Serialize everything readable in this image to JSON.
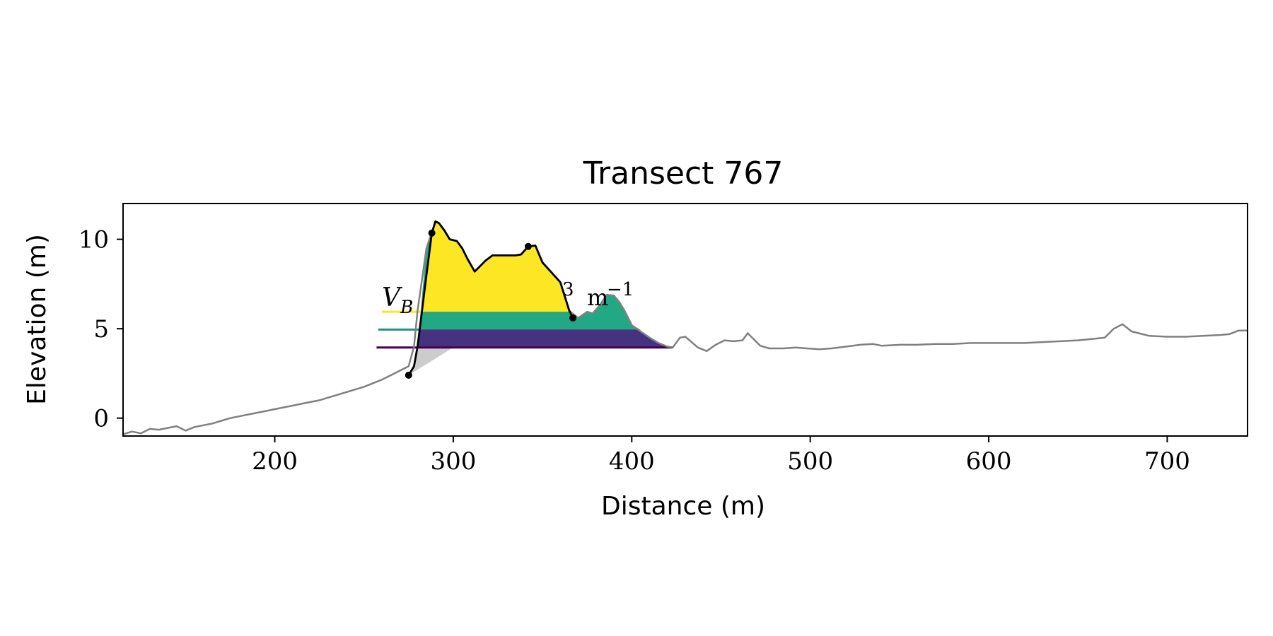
{
  "chart_data": {
    "type": "area",
    "title": "Transect 767",
    "xlabel": "Distance (m)",
    "ylabel": "Elevation (m)",
    "xlim": [
      115,
      745
    ],
    "ylim": [
      -1,
      12
    ],
    "xticks": [
      200,
      300,
      400,
      500,
      600,
      700
    ],
    "yticks": [
      0,
      5,
      10
    ],
    "grid": false,
    "annotation": {
      "base": "V",
      "subscript": "B",
      "unit_sup": "3",
      "unit_mid": "m",
      "unit_sup2": "−1"
    },
    "colors": {
      "profile": "#808080",
      "dune_outline": "#000000",
      "yellow": "#fde725",
      "teal": "#21918c",
      "green": "#22a884",
      "indigo": "#46327e",
      "purple": "#440154",
      "gray_fill": "#cccccc"
    },
    "profile": {
      "x": [
        115,
        120,
        125,
        130,
        135,
        140,
        145,
        150,
        155,
        160,
        165,
        170,
        175,
        180,
        185,
        190,
        195,
        200,
        205,
        210,
        215,
        220,
        225,
        230,
        235,
        240,
        245,
        250,
        255,
        260,
        265,
        270,
        275,
        278,
        280,
        285,
        288,
        290,
        292,
        295,
        298,
        302,
        305,
        308,
        312,
        315,
        318,
        322,
        326,
        330,
        335,
        338,
        342,
        346,
        350,
        355,
        360,
        365,
        370,
        375,
        378,
        382,
        386,
        390,
        393,
        396,
        400,
        405,
        410,
        415,
        420,
        423,
        427,
        430,
        433,
        437,
        442,
        447,
        452,
        457,
        462,
        465,
        468,
        472,
        477,
        485,
        492,
        498,
        505,
        512,
        520,
        528,
        535,
        540,
        550,
        560,
        570,
        580,
        590,
        600,
        610,
        620,
        630,
        640,
        650,
        660,
        665,
        670,
        675,
        680,
        690,
        700,
        710,
        720,
        730,
        735,
        740,
        745
      ],
      "y": [
        -0.9,
        -0.75,
        -0.85,
        -0.6,
        -0.65,
        -0.55,
        -0.45,
        -0.7,
        -0.5,
        -0.4,
        -0.3,
        -0.15,
        0.0,
        0.1,
        0.2,
        0.3,
        0.4,
        0.5,
        0.6,
        0.7,
        0.8,
        0.9,
        1.0,
        1.15,
        1.3,
        1.45,
        1.6,
        1.75,
        1.95,
        2.15,
        2.4,
        2.65,
        2.9,
        4.0,
        6.0,
        9.5,
        10.4,
        11.0,
        10.9,
        10.5,
        10.0,
        9.9,
        9.5,
        8.9,
        8.2,
        8.5,
        8.8,
        9.1,
        9.1,
        9.1,
        9.1,
        9.15,
        9.6,
        9.65,
        8.7,
        8.15,
        7.6,
        6.0,
        5.6,
        5.95,
        5.85,
        6.3,
        6.9,
        6.85,
        6.5,
        6.0,
        5.2,
        4.85,
        4.5,
        4.2,
        4.0,
        3.95,
        4.5,
        4.55,
        4.3,
        3.95,
        3.75,
        4.1,
        4.35,
        4.3,
        4.35,
        4.75,
        4.45,
        4.05,
        3.9,
        3.9,
        3.95,
        3.9,
        3.85,
        3.9,
        4.0,
        4.1,
        4.15,
        4.05,
        4.1,
        4.1,
        4.15,
        4.15,
        4.2,
        4.2,
        4.2,
        4.2,
        4.25,
        4.3,
        4.35,
        4.45,
        4.5,
        5.0,
        5.25,
        4.85,
        4.6,
        4.55,
        4.55,
        4.6,
        4.65,
        4.7,
        4.9,
        4.9
      ]
    },
    "dune": {
      "x": [
        275,
        278,
        280,
        285,
        288,
        290,
        292,
        295,
        298,
        302,
        305,
        308,
        312,
        315,
        318,
        322,
        326,
        330,
        335,
        338,
        342,
        346,
        350,
        355,
        360,
        365,
        367
      ],
      "y": [
        2.4,
        2.9,
        4.0,
        8.0,
        10.35,
        11.0,
        10.9,
        10.5,
        10.0,
        9.9,
        9.5,
        8.9,
        8.2,
        8.5,
        8.8,
        9.1,
        9.1,
        9.1,
        9.1,
        9.15,
        9.6,
        9.65,
        8.7,
        8.15,
        7.6,
        6.0,
        5.6
      ]
    },
    "points": [
      {
        "x": 275,
        "y": 2.4
      },
      {
        "x": 288,
        "y": 10.35
      },
      {
        "x": 342,
        "y": 9.6
      },
      {
        "x": 367,
        "y": 5.6
      }
    ],
    "levels": [
      {
        "z": 5.95,
        "x_left": 260,
        "name": "yellow"
      },
      {
        "z": 4.95,
        "x_left": 258,
        "name": "teal"
      },
      {
        "z": 3.95,
        "x_left": 257,
        "name": "purple"
      }
    ]
  }
}
